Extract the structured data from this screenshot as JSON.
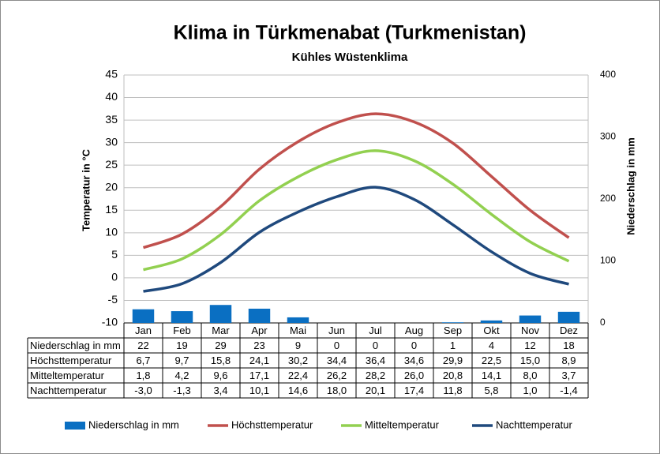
{
  "chart_data": {
    "type": "bar-line",
    "title": "Klima in Türkmenabat (Turkmenistan)",
    "subtitle": "Kühles Wüstenklima",
    "y_label": "Temperatur in °C",
    "y2_label": "Niederschlag in mm",
    "categories": [
      "Jan",
      "Feb",
      "Mar",
      "Apr",
      "Mai",
      "Jun",
      "Jul",
      "Aug",
      "Sep",
      "Okt",
      "Nov",
      "Dez"
    ],
    "ylim": [
      -10,
      45
    ],
    "yticks": [
      -10,
      -5,
      0,
      5,
      10,
      15,
      20,
      25,
      30,
      35,
      40,
      45
    ],
    "y2lim": [
      0,
      400
    ],
    "y2ticks": [
      0,
      100,
      200,
      300,
      400
    ],
    "grid": true,
    "legend": "bottom",
    "series": [
      {
        "name": "Niederschlag in mm",
        "type": "bar",
        "axis": "y2",
        "color": "#0a6fc2",
        "values": [
          22,
          19,
          29,
          23,
          9,
          0,
          0,
          0,
          1,
          4,
          12,
          18
        ]
      },
      {
        "name": "Höchsttemperatur",
        "type": "line",
        "color": "#c0504d",
        "values": [
          6.7,
          9.7,
          15.8,
          24.1,
          30.2,
          34.4,
          36.4,
          34.6,
          29.9,
          22.5,
          15.0,
          8.9
        ],
        "value_labels": [
          "6,7",
          "9,7",
          "15,8",
          "24,1",
          "30,2",
          "34,4",
          "36,4",
          "34,6",
          "29,9",
          "22,5",
          "15,0",
          "8,9"
        ]
      },
      {
        "name": "Mitteltemperatur",
        "type": "line",
        "color": "#92d050",
        "values": [
          1.8,
          4.2,
          9.6,
          17.1,
          22.4,
          26.2,
          28.2,
          26.0,
          20.8,
          14.1,
          8.0,
          3.7
        ],
        "value_labels": [
          "1,8",
          "4,2",
          "9,6",
          "17,1",
          "22,4",
          "26,2",
          "28,2",
          "26,0",
          "20,8",
          "14,1",
          "8,0",
          "3,7"
        ]
      },
      {
        "name": "Nachttemperatur",
        "type": "line",
        "color": "#1f497d",
        "values": [
          -3.0,
          -1.3,
          3.4,
          10.1,
          14.6,
          18.0,
          20.1,
          17.4,
          11.8,
          5.8,
          1.0,
          -1.4
        ],
        "value_labels": [
          "-3,0",
          "-1,3",
          "3,4",
          "10,1",
          "14,6",
          "18,0",
          "20,1",
          "17,4",
          "11,8",
          "5,8",
          "1,0",
          "-1,4"
        ]
      }
    ]
  }
}
